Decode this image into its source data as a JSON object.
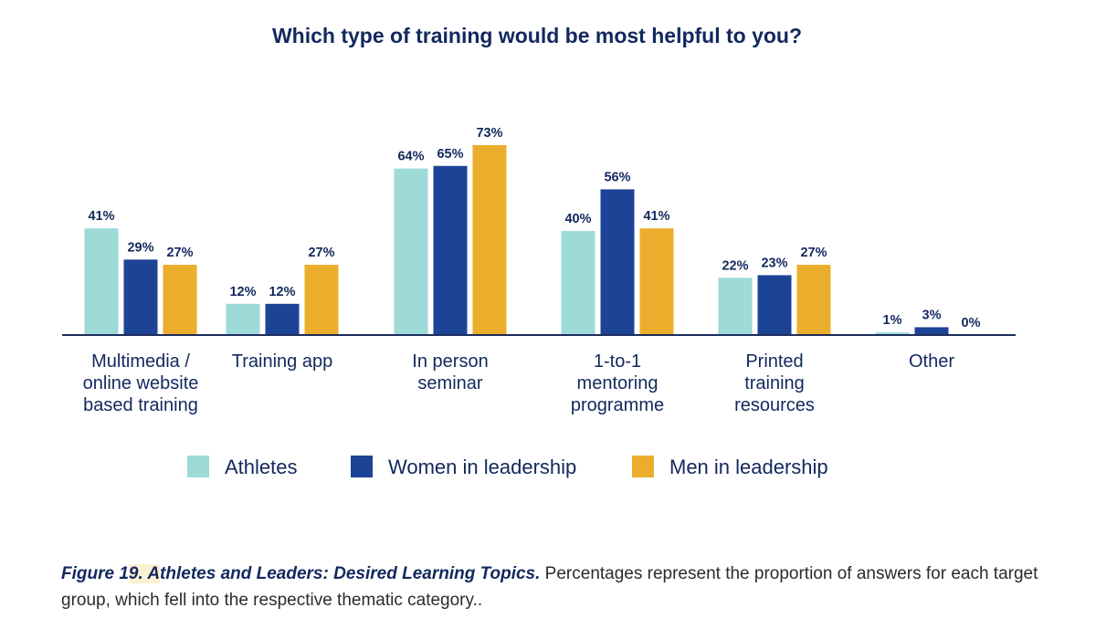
{
  "chart_data": {
    "type": "bar",
    "title": "Which type of training would be most helpful to you?",
    "categories": [
      [
        "Multimedia /",
        "online website",
        "based training"
      ],
      [
        "Training app"
      ],
      [
        "In person",
        "seminar"
      ],
      [
        "1-to-1",
        "mentoring",
        "programme"
      ],
      [
        "Printed",
        "training",
        "resources"
      ],
      [
        "Other"
      ]
    ],
    "series": [
      {
        "name": "Athletes",
        "color": "#9ddad8",
        "values": [
          41,
          12,
          64,
          40,
          22,
          1
        ]
      },
      {
        "name": "Women in leadership",
        "color": "#1d4396",
        "values": [
          29,
          12,
          65,
          56,
          23,
          3
        ]
      },
      {
        "name": "Men in leadership",
        "color": "#ebad2c",
        "values": [
          27,
          27,
          73,
          41,
          27,
          0
        ]
      }
    ],
    "value_suffix": "%",
    "ylim": [
      0,
      73
    ],
    "grid": false,
    "legend": "bottom",
    "axis_color": "#1d2d5c",
    "label_color": "#12285e"
  },
  "caption": {
    "figure_label_pre": "Figure 1",
    "figure_label_hl": "9. A",
    "figure_label_post": "thletes and Leaders: Desired Learning Topics.",
    "text": " Percentages represent the proportion of answers for each target group, which fell into the respective thematic category.."
  }
}
